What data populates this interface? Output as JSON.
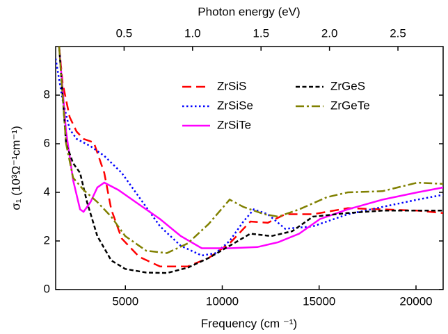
{
  "chart_data": {
    "type": "line",
    "x_label": "Frequency (cm ⁻¹)",
    "y_label": "σ₁ (10³Ω⁻¹cm⁻¹)",
    "x2_label": "Photon energy (eV)",
    "xlim": [
      1400,
      21400
    ],
    "xticks": [
      5000,
      10000,
      15000,
      20000
    ],
    "x2lim": [
      0,
      2.83
    ],
    "x2ticks": [
      0.5,
      {
        "value": 1,
        "label": "1.0"
      },
      1.5,
      {
        "value": 2,
        "label": "2.0"
      },
      2.5
    ],
    "ylim": [
      0,
      10
    ],
    "yticks": [
      0,
      2,
      4,
      6,
      8
    ],
    "grid": false,
    "legend": "top-center",
    "series": [
      {
        "name": "ZrSiS",
        "color": "#ff0000",
        "dash": "longdash",
        "x": [
          1580,
          1760,
          2120,
          2480,
          2840,
          3370,
          3910,
          4270,
          4810,
          5710,
          6790,
          8220,
          9300,
          10380,
          11450,
          12350,
          13250,
          14680,
          16480,
          18270,
          20070,
          21400
        ],
        "values": [
          10,
          8.5,
          7.1,
          6.5,
          6.2,
          6.05,
          4.8,
          3.3,
          2.1,
          1.35,
          0.95,
          0.95,
          1.3,
          1.9,
          2.8,
          2.75,
          3.1,
          3.1,
          3.35,
          3.3,
          3.25,
          3.15
        ]
      },
      {
        "name": "ZrSiSe",
        "color": "#0000ff",
        "dash": "dotted",
        "x": [
          1400,
          1760,
          2120,
          2480,
          3200,
          3910,
          4810,
          5710,
          6790,
          7860,
          8940,
          9660,
          10380,
          11090,
          11630,
          12350,
          13250,
          14680,
          16480,
          18270,
          20070,
          21400
        ],
        "values": [
          9.5,
          7.8,
          6.6,
          6.2,
          5.9,
          5.5,
          4.8,
          3.8,
          2.6,
          1.8,
          1.4,
          1.5,
          2.0,
          2.8,
          3.3,
          3.1,
          2.5,
          2.6,
          3.1,
          3.4,
          3.7,
          3.9
        ]
      },
      {
        "name": "ZrSiTe",
        "color": "#ff00ff",
        "dash": "solid",
        "x": [
          1580,
          1940,
          2300,
          2660,
          2840,
          3200,
          3550,
          3910,
          4630,
          5710,
          6790,
          7860,
          8940,
          10380,
          11810,
          12890,
          13970,
          15040,
          16480,
          18270,
          20070,
          21400
        ],
        "values": [
          10,
          6.5,
          4.5,
          3.3,
          3.2,
          3.6,
          4.2,
          4.4,
          4.1,
          3.5,
          2.9,
          2.2,
          1.7,
          1.7,
          1.75,
          1.95,
          2.3,
          2.9,
          3.3,
          3.7,
          4.0,
          4.2
        ]
      },
      {
        "name": "ZrGeS",
        "color": "#000000",
        "dash": "dashed",
        "x": [
          1580,
          1940,
          2300,
          2660,
          3020,
          3550,
          4270,
          4990,
          6070,
          7140,
          8220,
          9300,
          10380,
          11450,
          12530,
          13610,
          14680,
          16480,
          18270,
          20070,
          21400
        ],
        "values": [
          10,
          6.0,
          5.2,
          4.8,
          3.6,
          2.2,
          1.2,
          0.85,
          0.7,
          0.68,
          0.9,
          1.3,
          1.8,
          2.3,
          2.2,
          2.4,
          3.0,
          3.15,
          3.25,
          3.25,
          3.25
        ]
      },
      {
        "name": "ZrGeTe",
        "color": "#808000",
        "dash": "dashdot",
        "x": [
          1580,
          1940,
          2300,
          2840,
          3550,
          4270,
          4990,
          6070,
          7140,
          8220,
          9300,
          10380,
          11090,
          12170,
          12890,
          13970,
          15400,
          16480,
          18270,
          20070,
          21400
        ],
        "values": [
          10,
          6.0,
          4.6,
          4.1,
          3.6,
          3.0,
          2.2,
          1.6,
          1.5,
          1.9,
          2.7,
          3.7,
          3.4,
          3.1,
          3.0,
          3.3,
          3.8,
          4.0,
          4.05,
          4.4,
          4.35
        ]
      }
    ]
  }
}
